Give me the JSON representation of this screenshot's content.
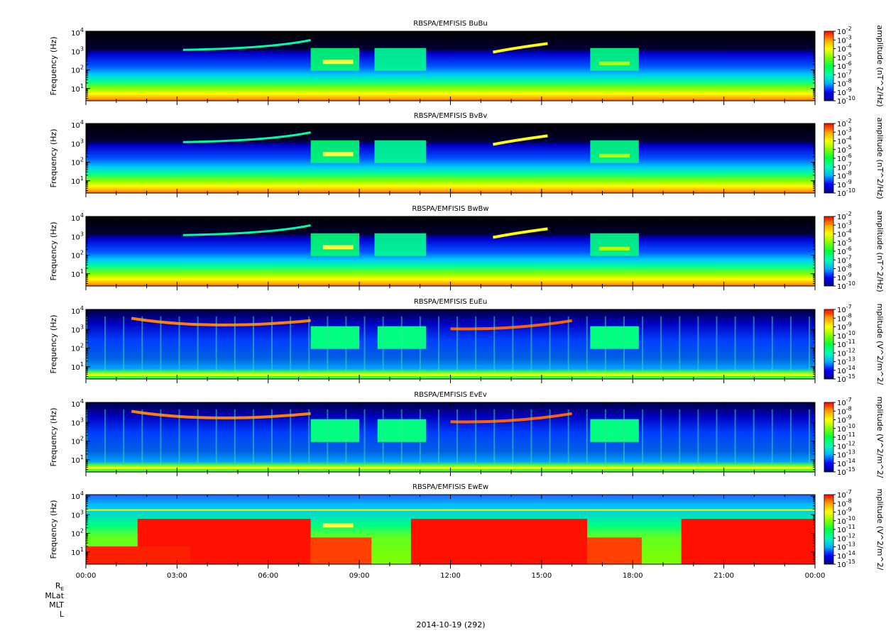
{
  "chart_data": {
    "type": "heatmap",
    "date_label": "2014-10-19 (292)",
    "x_ticks": [
      "00:00",
      "03:00",
      "06:00",
      "09:00",
      "12:00",
      "15:00",
      "18:00",
      "21:00",
      "00:00"
    ],
    "x_range_hours": [
      0,
      24
    ],
    "y_ticks": [
      {
        "value": 10,
        "base": "10",
        "exp": "1"
      },
      {
        "value": 100,
        "base": "10",
        "exp": "2"
      },
      {
        "value": 1000,
        "base": "10",
        "exp": "3"
      },
      {
        "value": 10000,
        "base": "10",
        "exp": "4"
      }
    ],
    "y_range": [
      2.2,
      12000
    ],
    "y_scale": "log",
    "ylabel": "Frequency (Hz)",
    "colormap": [
      "#000080",
      "#0000ff",
      "#00b0ff",
      "#00ffb0",
      "#00ff40",
      "#80ff00",
      "#ffff00",
      "#ffa000",
      "#ff0000"
    ],
    "panels": [
      {
        "title": "RBSPA/EMFISIS  BuBu",
        "cbar_label": "amplitude (nT^2/Hz)",
        "cbar_ticks": [
          {
            "base": "10",
            "exp": "-2"
          },
          {
            "base": "10",
            "exp": "-3"
          },
          {
            "base": "10",
            "exp": "-4"
          },
          {
            "base": "10",
            "exp": "-5"
          },
          {
            "base": "10",
            "exp": "-6"
          },
          {
            "base": "10",
            "exp": "-7"
          },
          {
            "base": "10",
            "exp": "-8"
          },
          {
            "base": "10",
            "exp": "-9"
          },
          {
            "base": "10",
            "exp": "-10"
          }
        ],
        "kind": "B"
      },
      {
        "title": "RBSPA/EMFISIS  BvBv",
        "cbar_label": "amplitude (nT^2/Hz)",
        "cbar_ticks": [
          {
            "base": "10",
            "exp": "-2"
          },
          {
            "base": "10",
            "exp": "-3"
          },
          {
            "base": "10",
            "exp": "-4"
          },
          {
            "base": "10",
            "exp": "-5"
          },
          {
            "base": "10",
            "exp": "-6"
          },
          {
            "base": "10",
            "exp": "-7"
          },
          {
            "base": "10",
            "exp": "-8"
          },
          {
            "base": "10",
            "exp": "-9"
          },
          {
            "base": "10",
            "exp": "-10"
          }
        ],
        "kind": "B"
      },
      {
        "title": "RBSPA/EMFISIS  BwBw",
        "cbar_label": "amplitude (nT^2/Hz)",
        "cbar_ticks": [
          {
            "base": "10",
            "exp": "-2"
          },
          {
            "base": "10",
            "exp": "-3"
          },
          {
            "base": "10",
            "exp": "-4"
          },
          {
            "base": "10",
            "exp": "-5"
          },
          {
            "base": "10",
            "exp": "-6"
          },
          {
            "base": "10",
            "exp": "-7"
          },
          {
            "base": "10",
            "exp": "-8"
          },
          {
            "base": "10",
            "exp": "-9"
          },
          {
            "base": "10",
            "exp": "-10"
          }
        ],
        "kind": "B"
      },
      {
        "title": "RBSPA/EMFISIS  EuEu",
        "cbar_label": "mplitude (V^2/m^2/",
        "cbar_ticks": [
          {
            "base": "10",
            "exp": "-7"
          },
          {
            "base": "10",
            "exp": "-8"
          },
          {
            "base": "10",
            "exp": "-9"
          },
          {
            "base": "10",
            "exp": "-10"
          },
          {
            "base": "10",
            "exp": "-11"
          },
          {
            "base": "10",
            "exp": "-12"
          },
          {
            "base": "10",
            "exp": "-13"
          },
          {
            "base": "10",
            "exp": "-14"
          },
          {
            "base": "10",
            "exp": "-15"
          }
        ],
        "kind": "E"
      },
      {
        "title": "RBSPA/EMFISIS  EvEv",
        "cbar_label": "mplitude (V^2/m^2/",
        "cbar_ticks": [
          {
            "base": "10",
            "exp": "-7"
          },
          {
            "base": "10",
            "exp": "-8"
          },
          {
            "base": "10",
            "exp": "-9"
          },
          {
            "base": "10",
            "exp": "-10"
          },
          {
            "base": "10",
            "exp": "-11"
          },
          {
            "base": "10",
            "exp": "-12"
          },
          {
            "base": "10",
            "exp": "-13"
          },
          {
            "base": "10",
            "exp": "-14"
          },
          {
            "base": "10",
            "exp": "-15"
          }
        ],
        "kind": "E"
      },
      {
        "title": "RBSPA/EMFISIS  EwEw",
        "cbar_label": "mplitude (V^2/m^2/",
        "cbar_ticks": [
          {
            "base": "10",
            "exp": "-7"
          },
          {
            "base": "10",
            "exp": "-8"
          },
          {
            "base": "10",
            "exp": "-9"
          },
          {
            "base": "10",
            "exp": "-10"
          },
          {
            "base": "10",
            "exp": "-11"
          },
          {
            "base": "10",
            "exp": "-12"
          },
          {
            "base": "10",
            "exp": "-13"
          },
          {
            "base": "10",
            "exp": "-14"
          },
          {
            "base": "10",
            "exp": "-15"
          }
        ],
        "kind": "Ew"
      }
    ],
    "ephemeris_labels": [
      {
        "main": "R",
        "sub": "E"
      },
      {
        "main": "MLat",
        "sub": ""
      },
      {
        "main": "MLT",
        "sub": ""
      },
      {
        "main": "L",
        "sub": ""
      }
    ]
  }
}
